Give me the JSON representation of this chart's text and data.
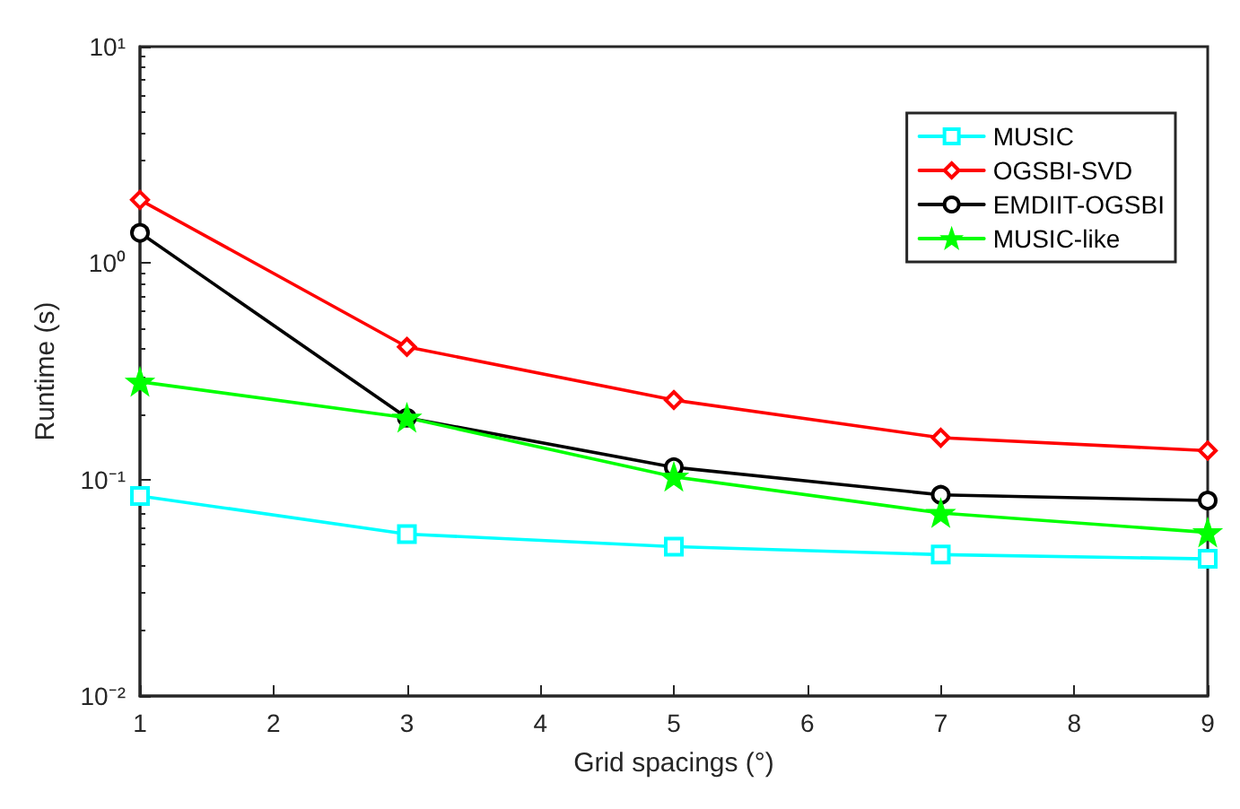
{
  "chart_data": {
    "type": "line",
    "xlabel": "Grid spacings (°)",
    "ylabel": "Runtime (s)",
    "x": [
      1,
      3,
      5,
      7,
      9
    ],
    "series": [
      {
        "name": "MUSIC",
        "color": "#00ffff",
        "marker": "square",
        "values": [
          0.084,
          0.056,
          0.049,
          0.045,
          0.043
        ]
      },
      {
        "name": "OGSBI-SVD",
        "color": "#ff0000",
        "marker": "diamond",
        "values": [
          1.96,
          0.41,
          0.233,
          0.156,
          0.136
        ]
      },
      {
        "name": "EMDIIT-OGSBI",
        "color": "#000000",
        "marker": "circle",
        "values": [
          1.38,
          0.193,
          0.114,
          0.085,
          0.08
        ]
      },
      {
        "name": "MUSIC-like",
        "color": "#00ff00",
        "marker": "star",
        "values": [
          0.283,
          0.193,
          0.103,
          0.07,
          0.057
        ]
      }
    ],
    "log": "y",
    "xlim": [
      1,
      9
    ],
    "xticks": [
      1,
      2,
      3,
      4,
      5,
      6,
      7,
      8,
      9
    ],
    "ylim": [
      0.01,
      10
    ],
    "yticks": [
      {
        "value": 0.01,
        "label": "10⁻²"
      },
      {
        "value": 0.1,
        "label": "10⁻¹"
      },
      {
        "value": 1,
        "label": "10⁰"
      },
      {
        "value": 10,
        "label": "10¹"
      }
    ],
    "grid": false,
    "legend": "top right",
    "line_style": "solid"
  }
}
